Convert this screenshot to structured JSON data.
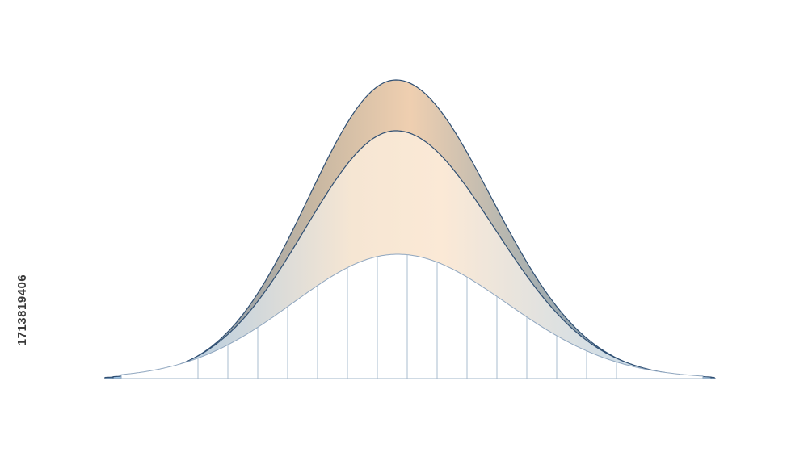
{
  "watermark_id": "1713819406"
}
